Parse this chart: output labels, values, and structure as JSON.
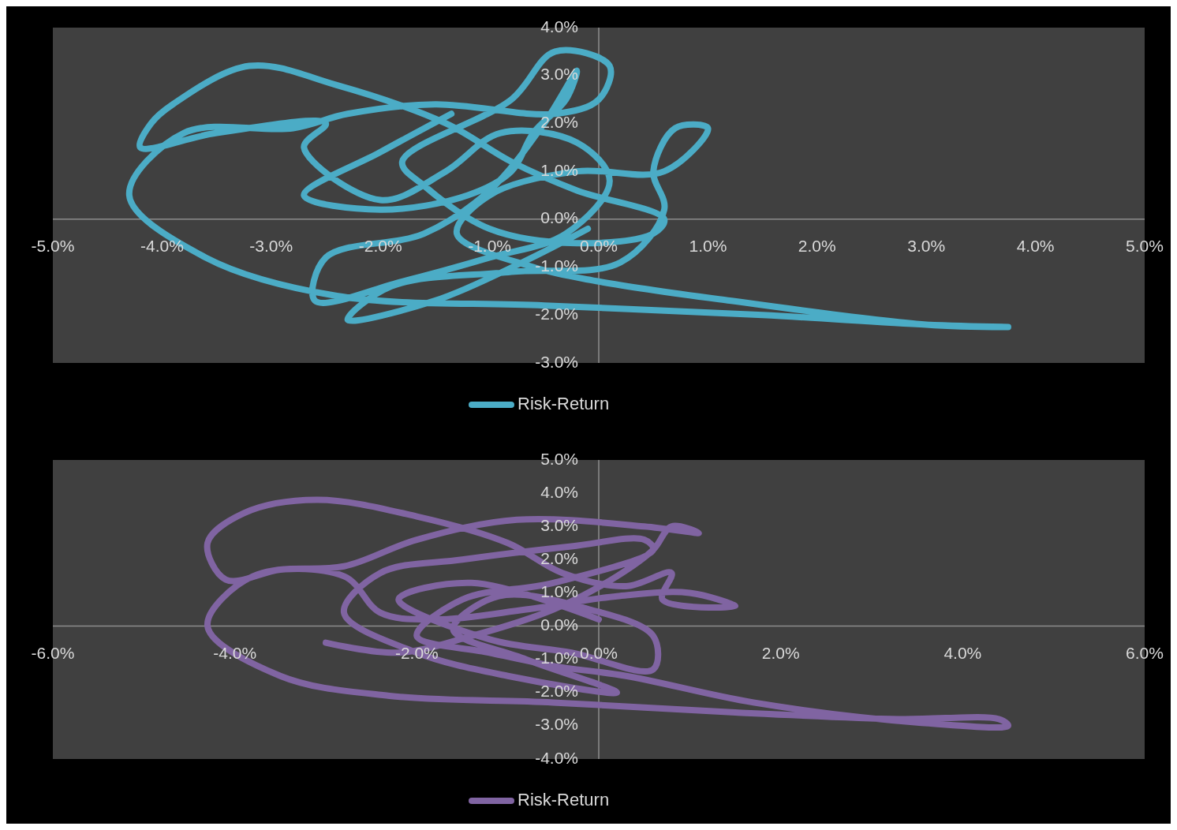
{
  "chart_data": [
    {
      "type": "line",
      "legend": "bottom",
      "xlim": [
        -5,
        5
      ],
      "ylim": [
        -3,
        4
      ],
      "xticks": [
        {
          "value": -5,
          "label": "-5.0%"
        },
        {
          "value": -4,
          "label": "-4.0%"
        },
        {
          "value": -3,
          "label": "-3.0%"
        },
        {
          "value": -2,
          "label": "-2.0%"
        },
        {
          "value": -1,
          "label": "-1.0%"
        },
        {
          "value": 0,
          "label": "0.0%"
        },
        {
          "value": 1,
          "label": "1.0%"
        },
        {
          "value": 2,
          "label": "2.0%"
        },
        {
          "value": 3,
          "label": "3.0%"
        },
        {
          "value": 4,
          "label": "4.0%"
        },
        {
          "value": 5,
          "label": "5.0%"
        }
      ],
      "yticks": [
        {
          "value": -3,
          "label": "-3.0%"
        },
        {
          "value": -2,
          "label": "-2.0%"
        },
        {
          "value": -1,
          "label": "-1.0%"
        },
        {
          "value": 0,
          "label": "0.0%"
        },
        {
          "value": 1,
          "label": "1.0%"
        },
        {
          "value": 2,
          "label": "2.0%"
        },
        {
          "value": 3,
          "label": "3.0%"
        },
        {
          "value": 4,
          "label": "4.0%"
        }
      ],
      "series": [
        {
          "name": "Risk-Return",
          "color": "#4bacc6",
          "x": [
            -1.35,
            -2.0,
            -2.7,
            -2.0,
            -1.2,
            -0.8,
            -0.6,
            -0.3,
            -0.2,
            -0.5,
            -1.0,
            -1.6,
            -2.5,
            -2.6,
            -1.8,
            -1.0,
            -0.3,
            0.1,
            -0.2,
            -0.9,
            -1.4,
            -2.0,
            -2.7,
            -2.5,
            -3.5,
            -4.2,
            -4.1,
            -3.9,
            -3.2,
            -2.4,
            -1.4,
            -0.8,
            -0.2,
            0.6,
            0.5,
            -0.2,
            -1.0,
            -1.6,
            -1.8,
            -0.8,
            -0.4,
            0.1,
            0.0,
            -0.4,
            -1.5,
            -2.3,
            -2.8,
            -3.8,
            -4.3,
            -3.6,
            -2.4,
            -0.5,
            1.5,
            3.0,
            3.75,
            3.0,
            1.2,
            0.0,
            -0.6,
            -1.3,
            -1.0,
            -0.2,
            0.6,
            1.0,
            0.7,
            0.5,
            0.6,
            0.2,
            -0.8,
            -1.9,
            -2.3,
            -1.5,
            -0.7,
            -0.1
          ],
          "values": [
            2.2,
            1.4,
            0.5,
            0.2,
            0.5,
            1.0,
            1.8,
            2.5,
            3.1,
            2.0,
            0.6,
            -0.3,
            -0.8,
            -1.7,
            -1.3,
            -0.8,
            -0.3,
            0.8,
            1.6,
            1.8,
            1.0,
            0.4,
            1.5,
            2.0,
            1.8,
            1.5,
            2.0,
            2.4,
            3.2,
            2.8,
            2.0,
            1.2,
            0.6,
            0.0,
            -0.3,
            -0.5,
            -0.2,
            0.7,
            1.2,
            2.5,
            3.5,
            3.2,
            2.5,
            2.2,
            2.4,
            2.2,
            1.9,
            1.8,
            0.5,
            -0.8,
            -1.6,
            -1.8,
            -2.0,
            -2.2,
            -2.25,
            -2.2,
            -1.7,
            -1.3,
            -1.0,
            -0.3,
            0.5,
            1.0,
            1.0,
            1.9,
            1.9,
            1.0,
            0.2,
            -0.9,
            -1.1,
            -1.4,
            -2.1,
            -1.7,
            -0.9,
            -0.2
          ]
        }
      ]
    },
    {
      "type": "line",
      "legend": "bottom",
      "xlim": [
        -6,
        6
      ],
      "ylim": [
        -4,
        5
      ],
      "xticks": [
        {
          "value": -6,
          "label": "-6.0%"
        },
        {
          "value": -4,
          "label": "-4.0%"
        },
        {
          "value": -2,
          "label": "-2.0%"
        },
        {
          "value": 0,
          "label": "0.0%"
        },
        {
          "value": 2,
          "label": "2.0%"
        },
        {
          "value": 4,
          "label": "4.0%"
        },
        {
          "value": 6,
          "label": "6.0%"
        }
      ],
      "yticks": [
        {
          "value": -4,
          "label": "-4.0%"
        },
        {
          "value": -3,
          "label": "-3.0%"
        },
        {
          "value": -2,
          "label": "-2.0%"
        },
        {
          "value": -1,
          "label": "-1.0%"
        },
        {
          "value": 0,
          "label": "0.0%"
        },
        {
          "value": 1,
          "label": "1.0%"
        },
        {
          "value": 2,
          "label": "2.0%"
        },
        {
          "value": 3,
          "label": "3.0%"
        },
        {
          "value": 4,
          "label": "4.0%"
        },
        {
          "value": 5,
          "label": "5.0%"
        }
      ],
      "series": [
        {
          "name": "Risk-Return",
          "color": "#8064a2",
          "x": [
            -3.0,
            -2.2,
            -1.4,
            -0.5,
            0.2,
            0.6,
            0.8,
            1.1,
            0.5,
            -0.9,
            -2.0,
            -2.8,
            -3.5,
            -4.1,
            -4.3,
            -3.9,
            -3.1,
            -2.0,
            -1.0,
            -0.4,
            0.3,
            0.8,
            0.7,
            1.5,
            1.0,
            0.2,
            -0.8,
            -1.8,
            -2.4,
            -2.8,
            -3.8,
            -4.3,
            -3.5,
            -2.3,
            -0.5,
            1.5,
            3.3,
            4.4,
            4.5,
            3.5,
            1.7,
            0.3,
            -0.5,
            -1.2,
            -2.0,
            -1.5,
            -0.5,
            0.6,
            0.5,
            -0.3,
            -1.5,
            -2.4,
            -2.8,
            -2.0,
            -1.0,
            0.2,
            -0.8,
            -1.6,
            -1.1,
            -0.1,
            0.6,
            0.6,
            -0.3,
            -1.2,
            -2.2,
            -1.4,
            0.0
          ],
          "values": [
            -0.5,
            -0.8,
            -0.3,
            0.5,
            1.5,
            2.3,
            3.0,
            2.8,
            3.0,
            3.2,
            2.6,
            1.8,
            1.7,
            1.4,
            2.5,
            3.4,
            3.8,
            3.3,
            2.5,
            1.6,
            1.2,
            1.6,
            0.8,
            0.6,
            1.0,
            0.9,
            0.5,
            0.2,
            0.4,
            1.5,
            1.5,
            0.0,
            -1.5,
            -2.1,
            -2.3,
            -2.6,
            -2.8,
            -2.8,
            -3.0,
            -2.9,
            -2.3,
            -1.5,
            -1.2,
            -0.8,
            -0.3,
            0.8,
            1.3,
            2.3,
            2.6,
            2.4,
            2.0,
            1.6,
            0.4,
            -0.8,
            -1.5,
            -2.0,
            -1.0,
            -0.1,
            0.9,
            0.5,
            -0.3,
            -1.3,
            -0.8,
            -0.4,
            0.8,
            1.3,
            0.2
          ]
        }
      ]
    }
  ]
}
